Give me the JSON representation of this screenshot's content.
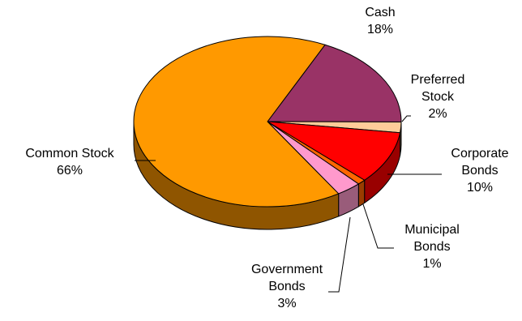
{
  "chart_data": {
    "type": "pie",
    "style": "3d-exploded-none",
    "title": "",
    "legend": "none",
    "slices": [
      {
        "label_lines": [
          "Cash",
          "18%"
        ],
        "value": 18,
        "color": "#993366",
        "side_color": "#5c1f3d"
      },
      {
        "label_lines": [
          "Preferred",
          "Stock",
          "2%"
        ],
        "value": 2,
        "color": "#ffcc99",
        "side_color": "#99795c"
      },
      {
        "label_lines": [
          "Corporate",
          "Bonds",
          "10%"
        ],
        "value": 10,
        "color": "#ff0000",
        "side_color": "#990000"
      },
      {
        "label_lines": [
          "Municipal",
          "Bonds",
          "1%"
        ],
        "value": 1,
        "color": "#ff6600",
        "side_color": "#993d00"
      },
      {
        "label_lines": [
          "Government",
          "Bonds",
          "3%"
        ],
        "value": 3,
        "color": "#ff99cc",
        "side_color": "#995c7a"
      },
      {
        "label_lines": [
          "Common Stock",
          "66%"
        ],
        "value": 66,
        "color": "#ff9900",
        "side_color": "#8f5500"
      }
    ]
  }
}
